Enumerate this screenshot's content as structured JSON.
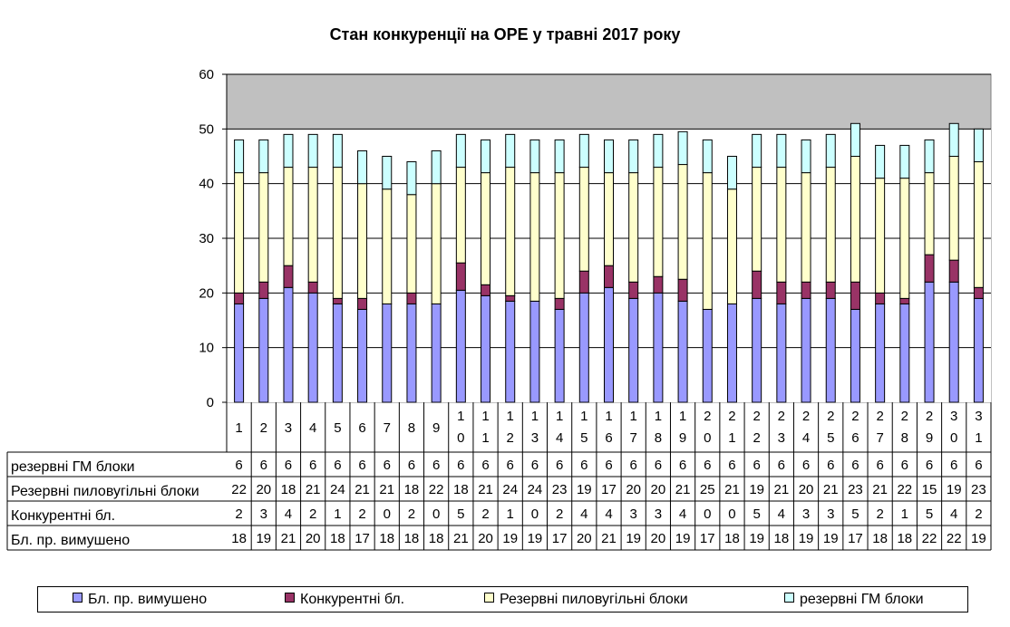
{
  "chart_data": {
    "type": "bar",
    "stacked": true,
    "title": "Стан конкуренції на ОРЕ  у травні 2017 року",
    "categories": [
      "1",
      "2",
      "3",
      "4",
      "5",
      "6",
      "7",
      "8",
      "9",
      "10",
      "11",
      "12",
      "13",
      "14",
      "15",
      "16",
      "17",
      "18",
      "19",
      "20",
      "21",
      "22",
      "23",
      "24",
      "25",
      "26",
      "27",
      "28",
      "29",
      "30",
      "31"
    ],
    "ylim": [
      0,
      60
    ],
    "yticks": [
      "0",
      "10",
      "20",
      "30",
      "40",
      "50",
      "60"
    ],
    "grid": true,
    "plot_background": "#c0c0c0",
    "series": [
      {
        "name": "Бл. пр. вимушено",
        "color": "#9999ff",
        "values": [
          18,
          19,
          21,
          20,
          18,
          17,
          18,
          18,
          18,
          20.5,
          19.5,
          18.5,
          18.5,
          17,
          20,
          21,
          19,
          20,
          18.5,
          17,
          18,
          19,
          18,
          19,
          19,
          17,
          18,
          18,
          22,
          22,
          19
        ],
        "labels": [
          "18",
          "19",
          "21",
          "20",
          "18",
          "17",
          "18",
          "18",
          "18",
          "21",
          "20",
          "19",
          "19",
          "17",
          "20",
          "21",
          "19",
          "20",
          "19",
          "17",
          "18",
          "19",
          "18",
          "19",
          "19",
          "17",
          "18",
          "18",
          "22",
          "22",
          "19"
        ]
      },
      {
        "name": "Конкурентні бл.",
        "color": "#993366",
        "values": [
          2,
          3,
          4,
          2,
          1,
          2,
          0,
          2,
          0,
          5,
          2,
          1,
          0,
          2,
          4,
          4,
          3,
          3,
          4,
          0,
          0,
          5,
          4,
          3,
          3,
          5,
          2,
          1,
          5,
          4,
          2
        ],
        "labels": [
          "2",
          "3",
          "4",
          "2",
          "1",
          "2",
          "0",
          "2",
          "0",
          "5",
          "2",
          "1",
          "0",
          "2",
          "4",
          "4",
          "3",
          "3",
          "4",
          "0",
          "0",
          "5",
          "4",
          "3",
          "3",
          "5",
          "2",
          "1",
          "5",
          "4",
          "2"
        ]
      },
      {
        "name": "Резервні пиловугільні блоки",
        "color": "#ffffcc",
        "values": [
          22,
          20,
          18,
          21,
          24,
          21,
          21,
          18,
          22,
          17.5,
          20.5,
          23.5,
          23.5,
          23,
          19,
          17,
          20,
          20,
          21,
          25,
          21,
          19,
          21,
          20,
          21,
          23,
          21,
          22,
          15,
          19,
          23
        ],
        "labels": [
          "22",
          "20",
          "18",
          "21",
          "24",
          "21",
          "21",
          "18",
          "22",
          "18",
          "21",
          "24",
          "24",
          "23",
          "19",
          "17",
          "20",
          "20",
          "21",
          "25",
          "21",
          "19",
          "21",
          "20",
          "21",
          "23",
          "21",
          "22",
          "15",
          "19",
          "23"
        ]
      },
      {
        "name": "резервні ГМ блоки",
        "color": "#ccffff",
        "values": [
          6,
          6,
          6,
          6,
          6,
          6,
          6,
          6,
          6,
          6,
          6,
          6,
          6,
          6,
          6,
          6,
          6,
          6,
          6,
          6,
          6,
          6,
          6,
          6,
          6,
          6,
          6,
          6,
          6,
          6,
          6
        ],
        "labels": [
          "6",
          "6",
          "6",
          "6",
          "6",
          "6",
          "6",
          "6",
          "6",
          "6",
          "6",
          "6",
          "6",
          "6",
          "6",
          "6",
          "6",
          "6",
          "6",
          "6",
          "6",
          "6",
          "6",
          "6",
          "6",
          "6",
          "6",
          "6",
          "6",
          "6",
          "6"
        ]
      }
    ],
    "table_rows": [
      "резервні ГМ блоки",
      "Резервні пиловугільні блоки",
      "Конкурентні бл.",
      "Бл. пр. вимушено"
    ],
    "legend": [
      "Бл. пр. вимушено",
      "Конкурентні бл.",
      "Резервні пиловугільні блоки",
      "резервні ГМ блоки"
    ],
    "legend_placement": "bottom"
  }
}
